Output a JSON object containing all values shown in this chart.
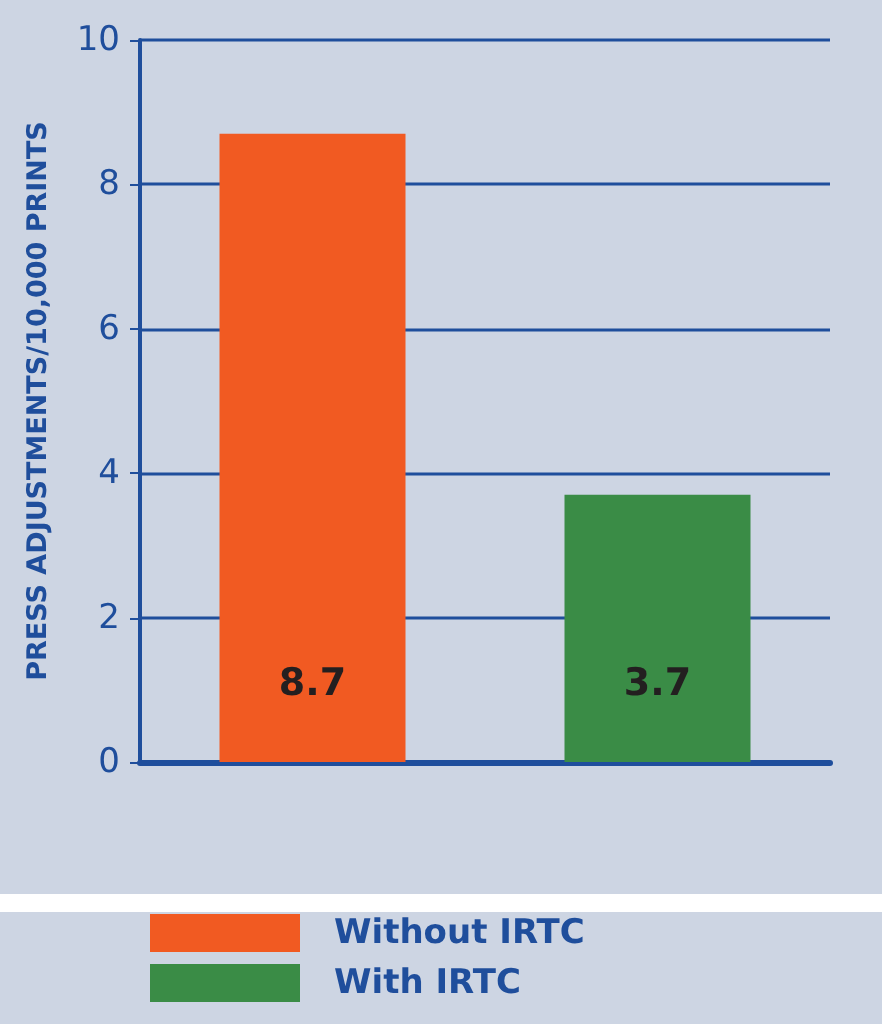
{
  "chart_data": {
    "type": "bar",
    "ylabel": "PRESS ADJUSTMENTS/10,000 PRINTS",
    "categories": [
      null,
      null
    ],
    "series": [
      {
        "name": "Without IRTC",
        "color": "#f15a22",
        "values": [
          8.7,
          null
        ]
      },
      {
        "name": "With IRTC",
        "color": "#3a8c46",
        "values": [
          null,
          3.7
        ]
      }
    ],
    "ylim": [
      0,
      10
    ],
    "yticks": [
      0,
      2,
      4,
      6,
      8,
      10
    ],
    "grid": "y",
    "legend": "bottom",
    "data_labels": true
  }
}
